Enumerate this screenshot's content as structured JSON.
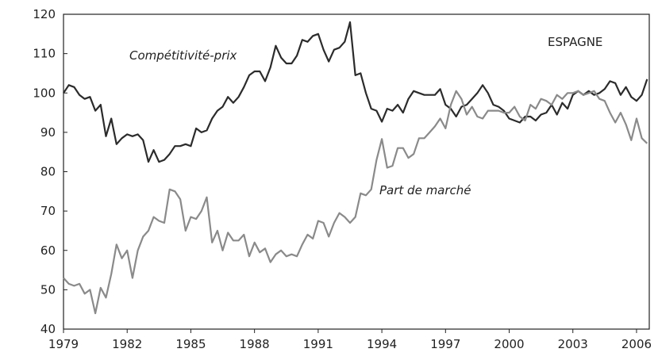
{
  "chart_data": {
    "type": "line",
    "annotations": [
      "Compétitivité-prix",
      "Part de marché",
      "ESPAGNE"
    ],
    "x": [
      1979,
      1979.25,
      1979.5,
      1979.75,
      1980,
      1980.25,
      1980.5,
      1980.75,
      1981,
      1981.25,
      1981.5,
      1981.75,
      1982,
      1982.25,
      1982.5,
      1982.75,
      1983,
      1983.25,
      1983.5,
      1983.75,
      1984,
      1984.25,
      1984.5,
      1984.75,
      1985,
      1985.25,
      1985.5,
      1985.75,
      1986,
      1986.25,
      1986.5,
      1986.75,
      1987,
      1987.25,
      1987.5,
      1987.75,
      1988,
      1988.25,
      1988.5,
      1988.75,
      1989,
      1989.25,
      1989.5,
      1989.75,
      1990,
      1990.25,
      1990.5,
      1990.75,
      1991,
      1991.25,
      1991.5,
      1991.75,
      1992,
      1992.25,
      1992.5,
      1992.75,
      1993,
      1993.25,
      1993.5,
      1993.75,
      1994,
      1994.25,
      1994.5,
      1994.75,
      1995,
      1995.25,
      1995.5,
      1995.75,
      1996,
      1996.25,
      1996.5,
      1996.75,
      1997,
      1997.25,
      1997.5,
      1997.75,
      1998,
      1998.25,
      1998.5,
      1998.75,
      1999,
      1999.25,
      1999.5,
      1999.75,
      2000,
      2000.25,
      2000.5,
      2000.75,
      2001,
      2001.25,
      2001.5,
      2001.75,
      2002,
      2002.25,
      2002.5,
      2002.75,
      2003,
      2003.25,
      2003.5,
      2003.75,
      2004,
      2004.25,
      2004.5,
      2004.75,
      2005,
      2005.25,
      2005.5,
      2005.75,
      2006,
      2006.25,
      2006.5
    ],
    "series": [
      {
        "name": "Compétitivité-prix",
        "color": "#2b2b2b",
        "values": [
          100,
          102,
          101.5,
          99.5,
          98.5,
          99,
          95.5,
          97,
          89,
          93.5,
          87,
          88.5,
          89.5,
          89,
          89.5,
          88,
          82.5,
          85.5,
          82.5,
          83,
          84.5,
          86.5,
          86.5,
          87,
          86.5,
          91,
          90,
          90.5,
          93.5,
          95.5,
          96.5,
          99,
          97.5,
          99,
          101.5,
          104.5,
          105.5,
          105.5,
          103,
          106.5,
          112,
          109,
          107.5,
          107.5,
          109.5,
          113.5,
          113,
          114.5,
          115,
          111,
          108,
          111,
          111.5,
          113,
          118,
          104.5,
          105,
          100,
          96,
          95.5,
          92.7,
          96,
          95.5,
          97,
          95,
          98.5,
          100.5,
          100,
          99.5,
          99.5,
          99.5,
          101,
          97,
          96,
          94,
          96.5,
          97,
          98.5,
          100,
          102,
          100,
          97,
          96.5,
          95.5,
          93.5,
          93,
          92.5,
          94,
          94,
          93,
          94.5,
          95,
          97,
          94.5,
          97.5,
          96,
          99.5,
          100.5,
          99.5,
          100.5,
          99.5,
          100,
          101,
          103,
          102.5,
          99.5,
          101.5,
          99,
          98,
          99.5,
          103.5
        ]
      },
      {
        "name": "Part de marché",
        "color": "#8a8a8a",
        "values": [
          53,
          51.5,
          51,
          51.5,
          49,
          50,
          44,
          50.5,
          48,
          54,
          61.5,
          58,
          60,
          53,
          60,
          63.5,
          65,
          68.5,
          67.5,
          67,
          75.5,
          75,
          73,
          65,
          68.5,
          68,
          70,
          73.5,
          62,
          65,
          60,
          64.5,
          62.5,
          62.5,
          64,
          58.5,
          62,
          59.5,
          60.5,
          57,
          59,
          60,
          58.5,
          59,
          58.5,
          61.5,
          64,
          63,
          67.5,
          67,
          63.5,
          67,
          69.5,
          68.5,
          67,
          68.5,
          74.5,
          74,
          75.5,
          83,
          88.3,
          81,
          81.5,
          86,
          86,
          83.5,
          84.5,
          88.5,
          88.5,
          90,
          91.5,
          93.5,
          91,
          97,
          100.5,
          98.5,
          94.5,
          96.5,
          94,
          93.5,
          95.5,
          95.5,
          95.5,
          95,
          95,
          96.5,
          94,
          93,
          97,
          96,
          98.5,
          98,
          97,
          99.5,
          98.5,
          100,
          100,
          100.5,
          99.5,
          100,
          100.5,
          98.5,
          98,
          95,
          92.5,
          95,
          92,
          88,
          93.5,
          88.5,
          87.2
        ]
      }
    ],
    "xlim": [
      1979,
      2006.6
    ],
    "xticks": [
      1979,
      1982,
      1985,
      1988,
      1991,
      1994,
      1997,
      2000,
      2003,
      2006
    ],
    "ylim": [
      40,
      120
    ],
    "yticks": [
      40,
      50,
      60,
      70,
      80,
      90,
      100,
      110,
      120
    ]
  }
}
